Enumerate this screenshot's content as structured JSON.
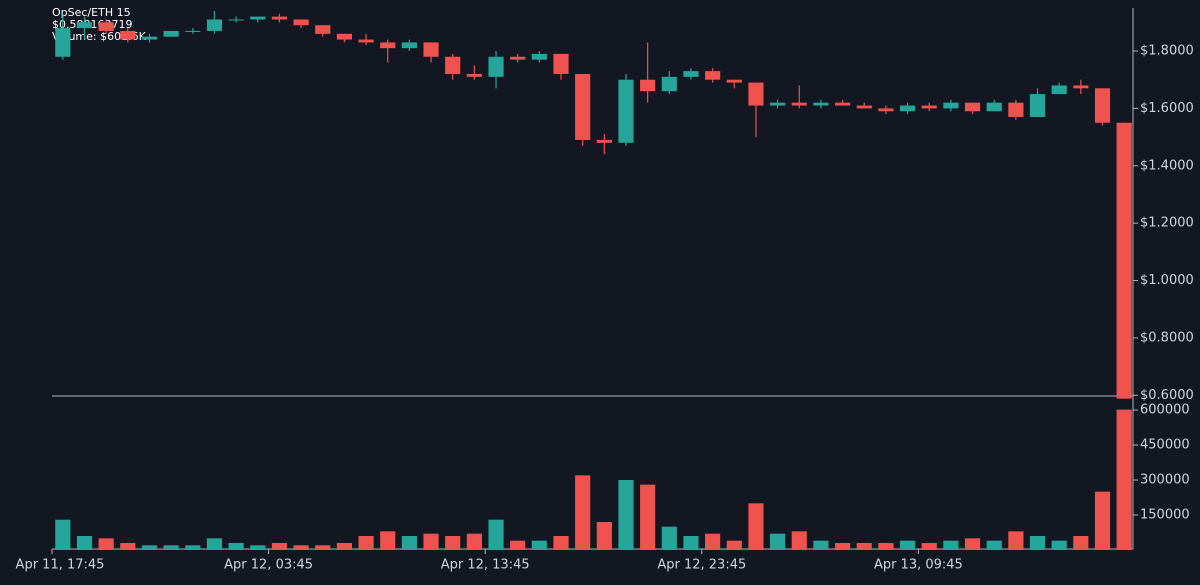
{
  "chart_data": {
    "type": "candlestick",
    "info": [
      "OpSec/ETH 15",
      "$0.588163719",
      "Volume: $601.6K"
    ],
    "categories": [
      "Apr 11, 17:45",
      null,
      null,
      null,
      null,
      null,
      null,
      null,
      null,
      null,
      "Apr 12, 03:45",
      null,
      null,
      null,
      null,
      null,
      null,
      null,
      null,
      null,
      "Apr 12, 13:45",
      null,
      null,
      null,
      null,
      null,
      null,
      null,
      null,
      null,
      "Apr 12, 23:45",
      null,
      null,
      null,
      null,
      null,
      null,
      null,
      null,
      null,
      "Apr 13, 09:45",
      null,
      null,
      null,
      null,
      null,
      null,
      null,
      null,
      null
    ],
    "open": [
      1.78,
      1.88,
      1.9,
      1.87,
      1.84,
      1.85,
      1.87,
      1.87,
      1.91,
      1.91,
      1.92,
      1.91,
      1.89,
      1.86,
      1.84,
      1.83,
      1.81,
      1.83,
      1.78,
      1.72,
      1.71,
      1.78,
      1.77,
      1.79,
      1.72,
      1.49,
      1.48,
      1.7,
      1.66,
      1.71,
      1.73,
      1.7,
      1.69,
      1.61,
      1.62,
      1.61,
      1.62,
      1.61,
      1.6,
      1.59,
      1.61,
      1.6,
      1.62,
      1.59,
      1.62,
      1.57,
      1.65,
      1.68,
      1.67,
      1.55
    ],
    "high": [
      1.93,
      1.92,
      1.91,
      1.88,
      1.86,
      1.87,
      1.88,
      1.94,
      1.92,
      1.92,
      1.93,
      1.91,
      1.89,
      1.86,
      1.86,
      1.84,
      1.84,
      1.83,
      1.79,
      1.75,
      1.8,
      1.79,
      1.8,
      1.79,
      1.72,
      1.51,
      1.72,
      1.83,
      1.73,
      1.74,
      1.74,
      1.7,
      1.69,
      1.63,
      1.68,
      1.63,
      1.63,
      1.62,
      1.61,
      1.62,
      1.62,
      1.63,
      1.62,
      1.63,
      1.63,
      1.67,
      1.69,
      1.7,
      1.67,
      1.55
    ],
    "low": [
      1.77,
      1.84,
      1.86,
      1.83,
      1.83,
      1.85,
      1.86,
      1.86,
      1.9,
      1.9,
      1.9,
      1.88,
      1.85,
      1.83,
      1.82,
      1.76,
      1.8,
      1.76,
      1.7,
      1.7,
      1.67,
      1.76,
      1.76,
      1.7,
      1.47,
      1.44,
      1.47,
      1.62,
      1.65,
      1.7,
      1.69,
      1.67,
      1.5,
      1.6,
      1.6,
      1.6,
      1.61,
      1.6,
      1.58,
      1.58,
      1.59,
      1.59,
      1.58,
      1.59,
      1.56,
      1.57,
      1.65,
      1.65,
      1.54,
      0.588163719
    ],
    "close": [
      1.88,
      1.9,
      1.87,
      1.84,
      1.85,
      1.87,
      1.87,
      1.91,
      1.91,
      1.92,
      1.91,
      1.89,
      1.86,
      1.84,
      1.83,
      1.81,
      1.83,
      1.78,
      1.72,
      1.71,
      1.78,
      1.77,
      1.79,
      1.72,
      1.49,
      1.48,
      1.7,
      1.66,
      1.71,
      1.73,
      1.7,
      1.69,
      1.61,
      1.62,
      1.61,
      1.62,
      1.61,
      1.6,
      1.59,
      1.61,
      1.6,
      1.62,
      1.59,
      1.62,
      1.57,
      1.65,
      1.68,
      1.67,
      1.55,
      0.588163719
    ],
    "volume": [
      130000,
      60000,
      50000,
      30000,
      20000,
      20000,
      20000,
      50000,
      30000,
      20000,
      30000,
      20000,
      20000,
      30000,
      60000,
      80000,
      60000,
      70000,
      60000,
      70000,
      130000,
      40000,
      40000,
      60000,
      320000,
      120000,
      300000,
      280000,
      100000,
      60000,
      70000,
      40000,
      200000,
      70000,
      80000,
      40000,
      30000,
      30000,
      30000,
      40000,
      30000,
      40000,
      50000,
      40000,
      80000,
      60000,
      40000,
      60000,
      250000,
      601600
    ],
    "up_color": "#26a69a",
    "down_color": "#ef5350",
    "ylim": [
      0.58,
      1.95
    ],
    "yticks": [
      {
        "value": 0.6,
        "label": "$0.6000"
      },
      {
        "value": 0.8,
        "label": "$0.8000"
      },
      {
        "value": 1.0,
        "label": "$1.0000"
      },
      {
        "value": 1.2,
        "label": "$1.2000"
      },
      {
        "value": 1.4,
        "label": "$1.4000"
      },
      {
        "value": 1.6,
        "label": "$1.6000"
      },
      {
        "value": 1.8,
        "label": "$1.8000"
      }
    ],
    "y2lim": [
      0,
      630000
    ],
    "y2ticks": [
      150000,
      300000,
      450000,
      600000
    ]
  }
}
